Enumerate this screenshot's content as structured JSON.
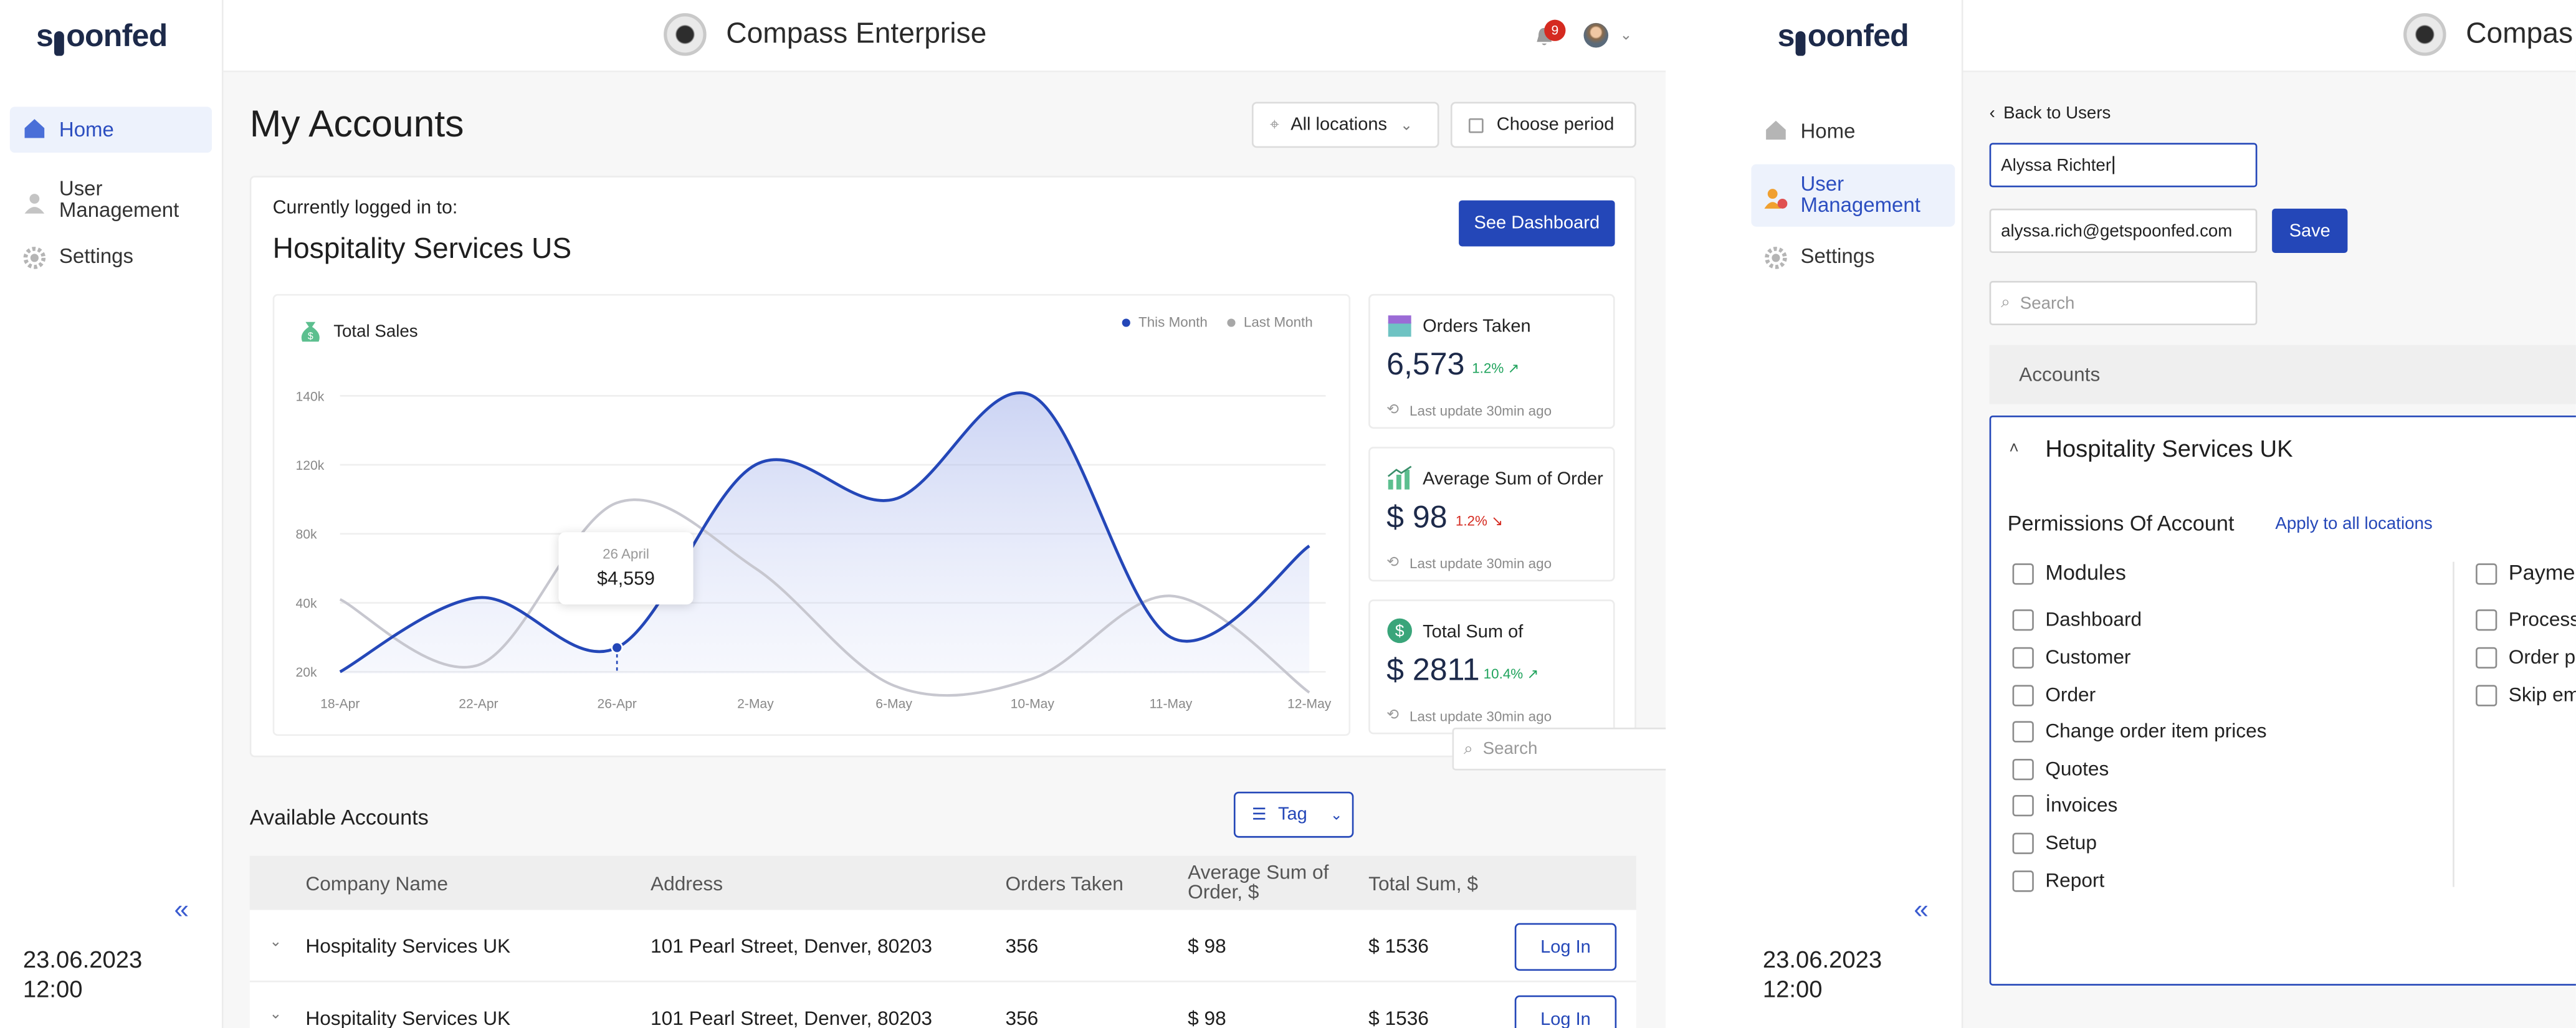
{
  "brand": {
    "logo_a": "s",
    "logo_b": "oonfed"
  },
  "sidebar": {
    "items": [
      {
        "label": "Home",
        "icon": "home-icon"
      },
      {
        "label": "User Management",
        "icon": "users-icon"
      },
      {
        "label": "Settings",
        "icon": "gear-icon"
      }
    ],
    "collapse_glyph": "«",
    "date": "23.06.2023",
    "time": "12:00"
  },
  "header": {
    "title": "Compass Enterprise",
    "notifications": "9"
  },
  "page": {
    "title": "My Accounts",
    "location_filter": "All locations",
    "period_filter": "Choose period"
  },
  "account_card": {
    "logged_label": "Currently logged in to:",
    "account_name": "Hospitality Services US",
    "dashboard_button": "See Dashboard"
  },
  "chart_data": {
    "type": "area",
    "title": "Total Sales",
    "legend": [
      "This Month",
      "Last Month"
    ],
    "x": [
      "18-Apr",
      "22-Apr",
      "26-Apr",
      "2-May",
      "6-May",
      "10-May",
      "11-May",
      "12-May"
    ],
    "yticks": [
      "140k",
      "120k",
      "80k",
      "40k",
      "20k"
    ],
    "series": [
      {
        "name": "This Month",
        "values": [
          20,
          43,
          27,
          120,
          100,
          142,
          30,
          73
        ]
      },
      {
        "name": "Last Month",
        "values": [
          42,
          22,
          98,
          60,
          16,
          18,
          44,
          14
        ]
      }
    ],
    "tooltip": {
      "date": "26 April",
      "value": "$4,559"
    },
    "colors": {
      "this_month": "#2447b8",
      "last_month": "#c7c7cf"
    }
  },
  "stats": [
    {
      "title": "Orders Taken",
      "value": "6,573",
      "change": "1.2%",
      "trend": "up",
      "updated": "Last update 30min ago"
    },
    {
      "title": "Average Sum of Order",
      "value": "$ 98",
      "change": "1.2%",
      "trend": "down",
      "updated": "Last update 30min ago"
    },
    {
      "title": "Total Sum of",
      "value": "$ 2811",
      "change": "10.4%",
      "trend": "up",
      "updated": "Last update 30min ago"
    }
  ],
  "search_placeholder": "Search",
  "accounts": {
    "title": "Available Accounts",
    "tag_button": "Tag",
    "columns": [
      "Company Name",
      "Address",
      "Orders Taken",
      "Average Sum of Order, $",
      "Total Sum, $"
    ],
    "rows": [
      {
        "company": "Hospitality Services UK",
        "address": "101 Pearl Street, Denver, 80203",
        "orders": "356",
        "avg": "$ 98",
        "total": "$ 1536",
        "action": "Log In"
      },
      {
        "company": "Hospitality Services UK",
        "address": "101 Pearl Street, Denver, 80203",
        "orders": "356",
        "avg": "$ 98",
        "total": "$ 1536",
        "action": "Log In"
      }
    ]
  },
  "user_edit": {
    "header_title": "Compas",
    "back_label": "Back to Users",
    "name_value": "Alyssa Richter",
    "email_value": "alyssa.rich@getspoonfed.com",
    "save_label": "Save",
    "search_placeholder": "Search",
    "accounts_heading": "Accounts",
    "account_name": "Hospitality Services UK",
    "permissions_title": "Permissions Of Account",
    "apply_all": "Apply to all locations",
    "modules": [
      "Modules",
      "Dashboard",
      "Customer",
      "Order",
      "Change order item prices",
      "Quotes",
      "İnvoices",
      "Setup",
      "Report"
    ],
    "modules_right": [
      "Payme",
      "Process",
      "Order p",
      "Skip em"
    ]
  },
  "colors": {
    "accent": "#2447b8",
    "active_nav_bg": "#edf2fc",
    "badge": "#d52a20",
    "positive": "#1fa35c",
    "negative": "#d52a20"
  }
}
